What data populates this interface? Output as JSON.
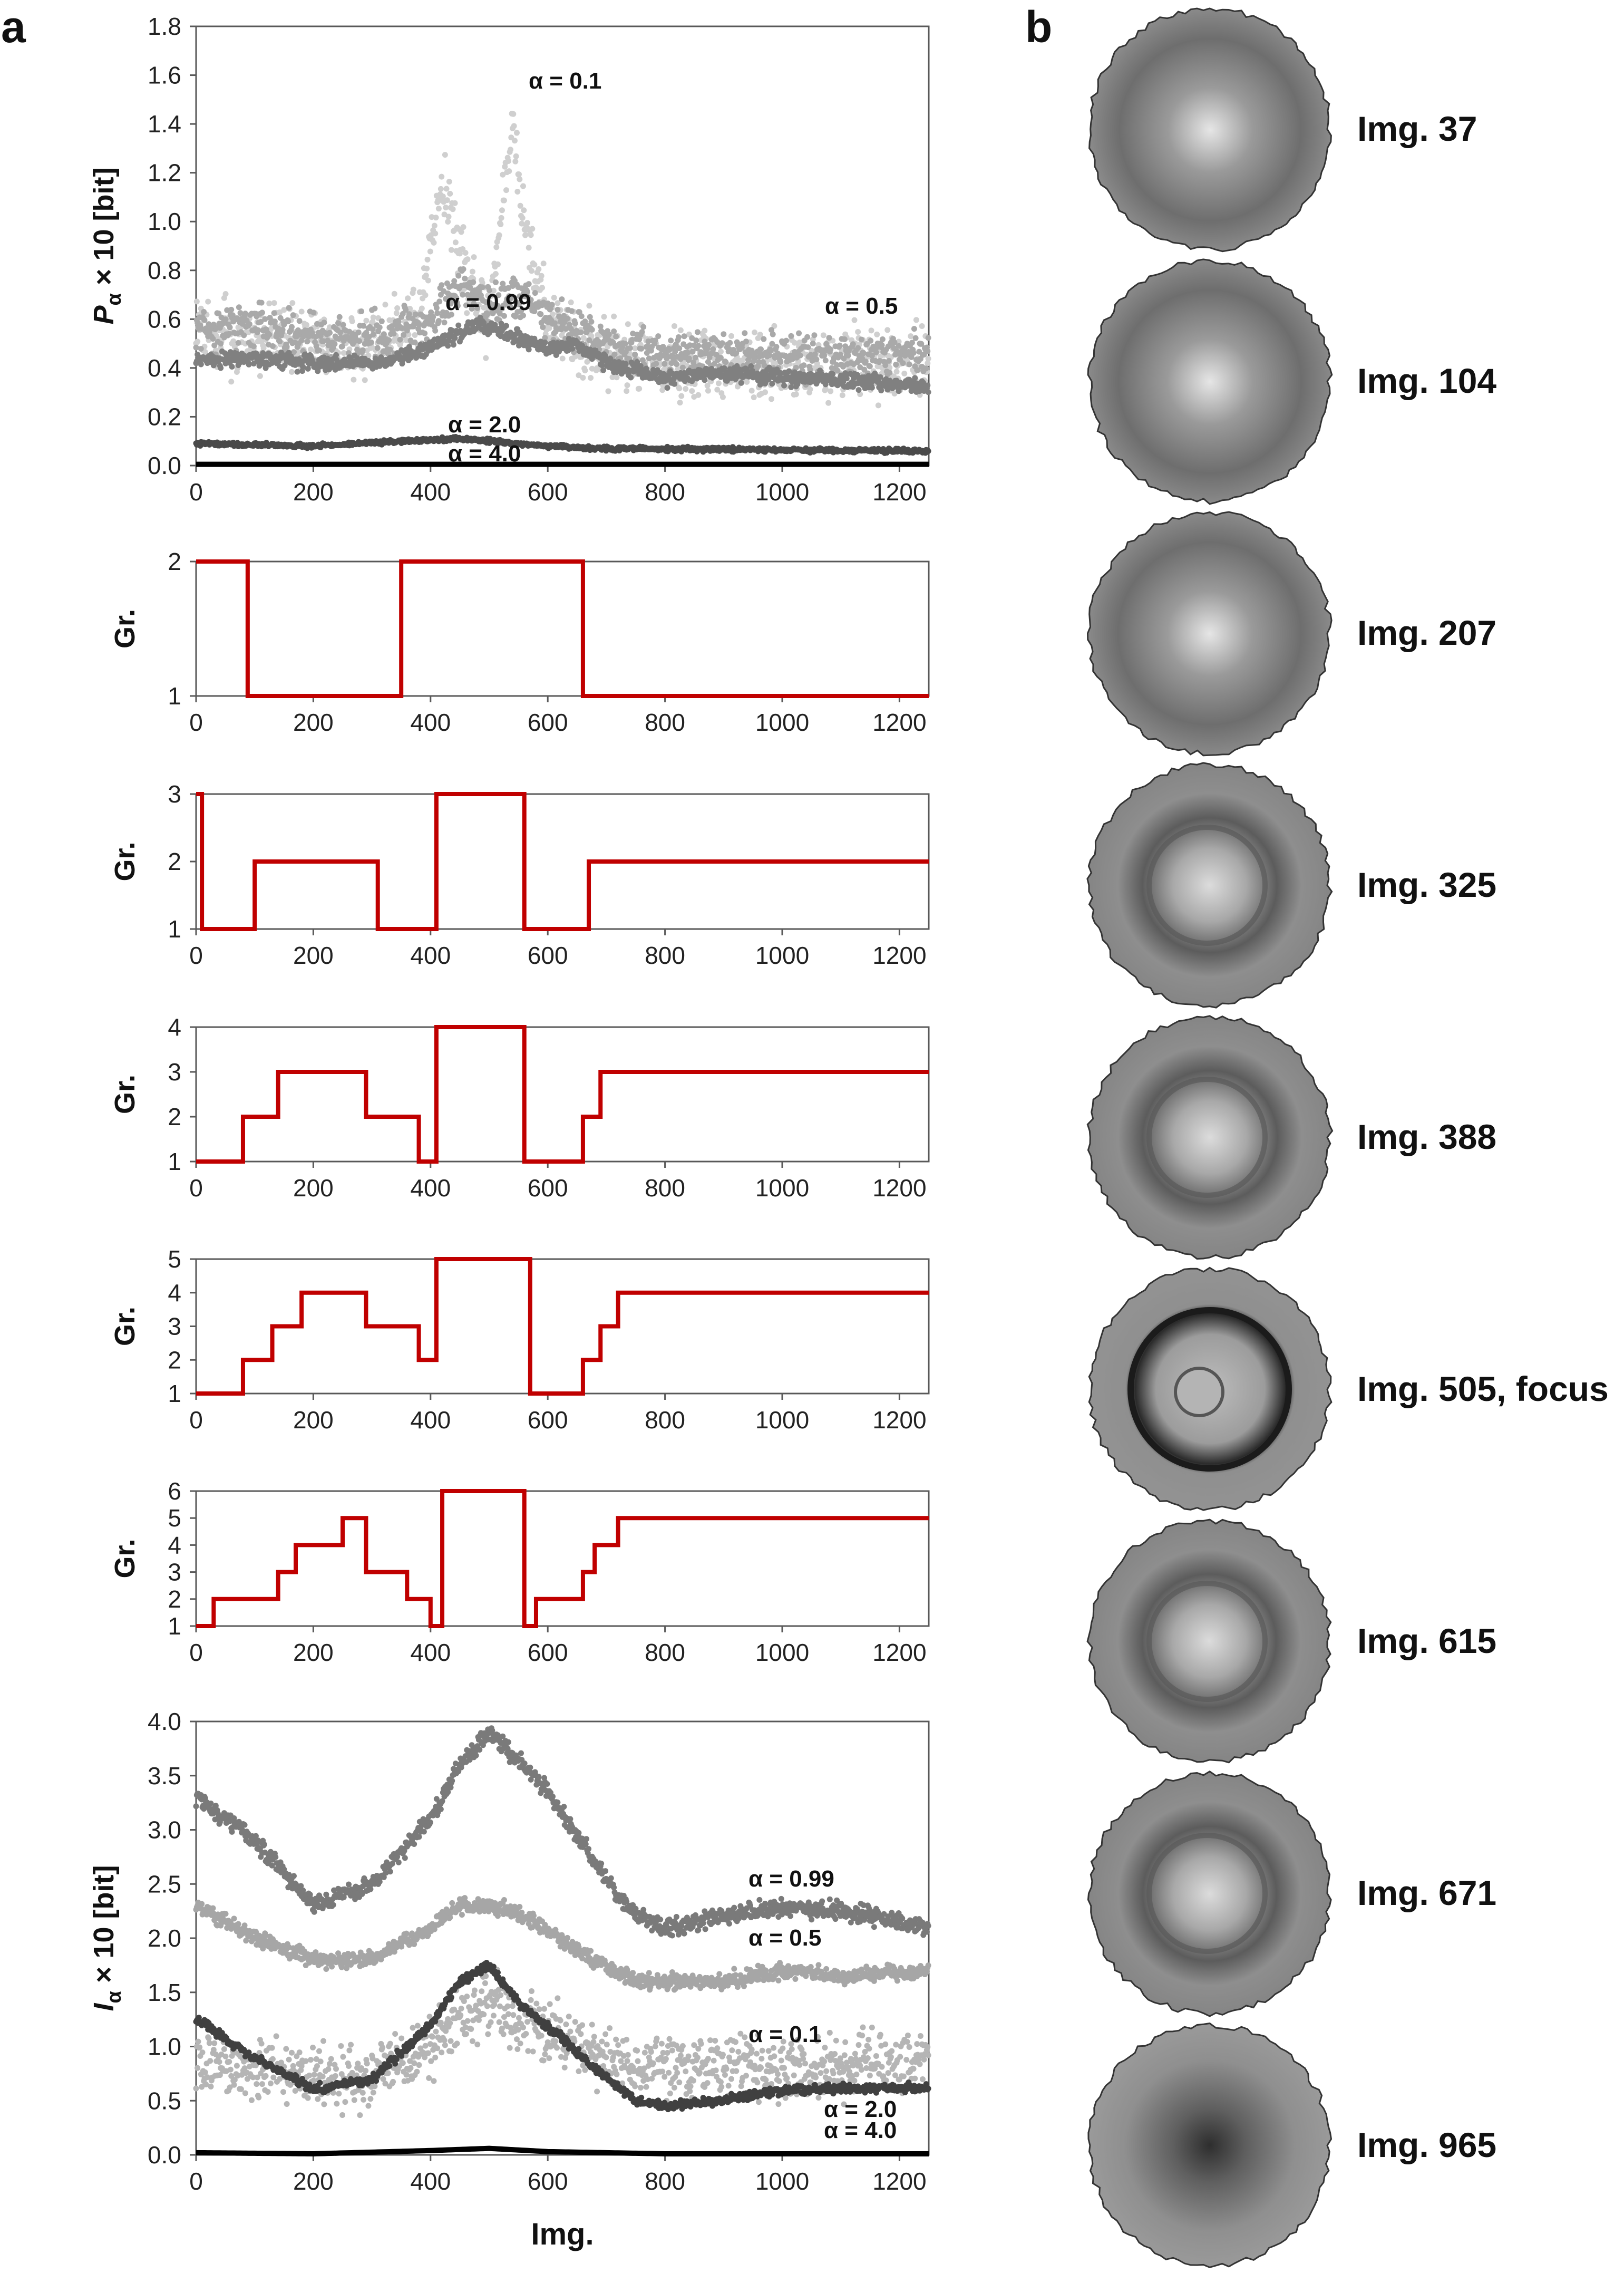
{
  "panels": {
    "a": "a",
    "b": "b"
  },
  "chart_data": [
    {
      "id": "p-alpha",
      "type": "scatter",
      "title": "",
      "xlabel": "",
      "ylabel": {
        "symbol": "P",
        "sub": "α",
        "rest": " × 10 [bit]"
      },
      "xlim": [
        0,
        1250
      ],
      "ylim": [
        0,
        1.8
      ],
      "xticks": [
        "0",
        "200",
        "400",
        "600",
        "800",
        "1000",
        "1200"
      ],
      "yticks": [
        "0.0",
        "0.2",
        "0.4",
        "0.6",
        "0.8",
        "1.0",
        "1.2",
        "1.4",
        "1.6",
        "1.8"
      ],
      "series": [
        {
          "name": "α = 0.1",
          "color": "#cfcfcf",
          "x": [
            0,
            100,
            200,
            300,
            380,
            420,
            460,
            500,
            540,
            560,
            600,
            650,
            700,
            800,
            900,
            1000,
            1100,
            1250
          ],
          "y": [
            0.55,
            0.52,
            0.5,
            0.5,
            0.6,
            1.2,
            0.8,
            0.6,
            1.4,
            1.0,
            0.6,
            0.5,
            0.45,
            0.4,
            0.42,
            0.4,
            0.42,
            0.4
          ]
        },
        {
          "name": "α = 0.5",
          "color": "#a9a9a9",
          "x": [
            0,
            100,
            200,
            300,
            400,
            450,
            500,
            550,
            600,
            650,
            700,
            800,
            900,
            1000,
            1100,
            1250
          ],
          "y": [
            0.56,
            0.58,
            0.52,
            0.52,
            0.6,
            0.75,
            0.65,
            0.7,
            0.6,
            0.55,
            0.5,
            0.46,
            0.45,
            0.44,
            0.45,
            0.45
          ]
        },
        {
          "name": "α = 0.99",
          "color": "#808080",
          "x": [
            0,
            100,
            200,
            300,
            400,
            480,
            550,
            600,
            650,
            700,
            800,
            900,
            1000,
            1100,
            1250
          ],
          "y": [
            0.43,
            0.44,
            0.42,
            0.42,
            0.48,
            0.58,
            0.52,
            0.48,
            0.5,
            0.42,
            0.36,
            0.38,
            0.36,
            0.35,
            0.32
          ]
        },
        {
          "name": "α = 2.0",
          "color": "#4a4a4a",
          "x": [
            0,
            200,
            350,
            450,
            500,
            600,
            700,
            1250
          ],
          "y": [
            0.09,
            0.08,
            0.1,
            0.11,
            0.1,
            0.08,
            0.07,
            0.06
          ]
        },
        {
          "name": "α = 4.0",
          "color": "#000000",
          "x": [
            0,
            1250
          ],
          "y": [
            0.005,
            0.005
          ]
        }
      ],
      "annotations": [
        "α = 0.1",
        "α = 0.99",
        "α = 0.5",
        "α = 2.0",
        "α = 4.0"
      ]
    },
    {
      "id": "groups-2",
      "type": "line",
      "ylabel": "Gr.",
      "xlim": [
        0,
        1250
      ],
      "ylim": [
        1,
        2
      ],
      "xticks": [
        "0",
        "200",
        "400",
        "600",
        "800",
        "1000",
        "1200"
      ],
      "yticks": [
        "1",
        "2"
      ],
      "series": [
        {
          "name": "groups",
          "color": "#c00000",
          "x": [
            0,
            88,
            350,
            365,
            660,
            1250
          ],
          "y": [
            2,
            1,
            2,
            2,
            1,
            1
          ]
        }
      ]
    },
    {
      "id": "groups-3",
      "type": "line",
      "ylabel": "Gr.",
      "xlim": [
        0,
        1250
      ],
      "ylim": [
        1,
        3
      ],
      "xticks": [
        "0",
        "200",
        "400",
        "600",
        "800",
        "1000",
        "1200"
      ],
      "yticks": [
        "1",
        "2",
        "3"
      ],
      "series": [
        {
          "name": "groups",
          "color": "#c00000",
          "x": [
            0,
            10,
            30,
            100,
            120,
            310,
            350,
            410,
            560,
            580,
            670,
            1250
          ],
          "y": [
            3,
            1,
            1,
            2,
            2,
            1,
            1,
            3,
            1,
            1,
            2,
            2
          ]
        }
      ]
    },
    {
      "id": "groups-4",
      "type": "line",
      "ylabel": "Gr.",
      "xlim": [
        0,
        1250
      ],
      "ylim": [
        1,
        4
      ],
      "xticks": [
        "0",
        "200",
        "400",
        "600",
        "800",
        "1000",
        "1200"
      ],
      "yticks": [
        "1",
        "2",
        "3",
        "4"
      ],
      "series": [
        {
          "name": "groups",
          "color": "#c00000",
          "x": [
            0,
            80,
            140,
            290,
            380,
            410,
            560,
            580,
            660,
            690,
            1250
          ],
          "y": [
            1,
            2,
            3,
            2,
            1,
            4,
            1,
            1,
            2,
            3,
            3
          ]
        }
      ]
    },
    {
      "id": "groups-5",
      "type": "line",
      "ylabel": "Gr.",
      "xlim": [
        0,
        1250
      ],
      "ylim": [
        1,
        5
      ],
      "xticks": [
        "0",
        "200",
        "400",
        "600",
        "800",
        "1000",
        "1200"
      ],
      "yticks": [
        "1",
        "2",
        "3",
        "4",
        "5"
      ],
      "series": [
        {
          "name": "groups",
          "color": "#c00000",
          "x": [
            0,
            80,
            130,
            180,
            290,
            380,
            410,
            570,
            580,
            660,
            690,
            720,
            1250
          ],
          "y": [
            1,
            2,
            3,
            4,
            3,
            2,
            5,
            1,
            1,
            2,
            3,
            4,
            4
          ]
        }
      ]
    },
    {
      "id": "groups-6",
      "type": "line",
      "ylabel": "Gr.",
      "xlim": [
        0,
        1250
      ],
      "ylim": [
        1,
        6
      ],
      "xticks": [
        "0",
        "200",
        "400",
        "600",
        "800",
        "1000",
        "1200"
      ],
      "yticks": [
        "1",
        "2",
        "3",
        "4",
        "5",
        "6"
      ],
      "series": [
        {
          "name": "groups",
          "color": "#c00000",
          "x": [
            0,
            30,
            70,
            140,
            170,
            250,
            290,
            360,
            400,
            420,
            560,
            580,
            660,
            680,
            700,
            720,
            1250
          ],
          "y": [
            1,
            2,
            2,
            3,
            4,
            5,
            3,
            2,
            1,
            6,
            1,
            2,
            3,
            4,
            4,
            5,
            5
          ]
        }
      ]
    },
    {
      "id": "i-alpha",
      "type": "scatter",
      "xlabel": "Img.",
      "ylabel": {
        "symbol": "I",
        "sub": "α",
        "rest": " × 10 [bit]"
      },
      "xlim": [
        0,
        1250
      ],
      "ylim": [
        0,
        4.0
      ],
      "xticks": [
        "0",
        "200",
        "400",
        "600",
        "800",
        "1000",
        "1200"
      ],
      "yticks": [
        "0.0",
        "0.5",
        "1.0",
        "1.5",
        "2.0",
        "2.5",
        "3.0",
        "3.5",
        "4.0"
      ],
      "series": [
        {
          "name": "α = 0.99",
          "color": "#7a7a7a",
          "x": [
            0,
            100,
            200,
            300,
            400,
            450,
            500,
            560,
            620,
            680,
            750,
            800,
            900,
            1000,
            1100,
            1250
          ],
          "y": [
            3.3,
            2.9,
            2.3,
            2.5,
            3.1,
            3.6,
            3.9,
            3.6,
            3.2,
            2.7,
            2.2,
            2.1,
            2.2,
            2.3,
            2.25,
            2.1
          ]
        },
        {
          "name": "α = 0.5",
          "color": "#a6a6a6",
          "x": [
            0,
            100,
            200,
            300,
            400,
            450,
            500,
            560,
            620,
            680,
            750,
            800,
            900,
            1000,
            1100,
            1250
          ],
          "y": [
            2.3,
            2.0,
            1.8,
            1.8,
            2.1,
            2.3,
            2.3,
            2.2,
            2.0,
            1.8,
            1.6,
            1.6,
            1.6,
            1.7,
            1.65,
            1.7
          ]
        },
        {
          "name": "α = 0.1",
          "color": "#b5b5b5",
          "x": [
            0,
            100,
            200,
            300,
            400,
            450,
            500,
            560,
            620,
            680,
            750,
            800,
            900,
            1000,
            1100,
            1250
          ],
          "y": [
            0.9,
            0.8,
            0.7,
            0.7,
            1.0,
            1.3,
            1.4,
            1.2,
            1.1,
            0.9,
            0.8,
            0.8,
            0.85,
            0.8,
            0.85,
            0.85
          ]
        },
        {
          "name": "α = 2.0",
          "color": "#404040",
          "x": [
            0,
            100,
            200,
            300,
            400,
            450,
            500,
            560,
            620,
            680,
            750,
            800,
            900,
            1000,
            1100,
            1250
          ],
          "y": [
            1.25,
            0.9,
            0.6,
            0.7,
            1.2,
            1.6,
            1.75,
            1.35,
            1.1,
            0.8,
            0.5,
            0.45,
            0.5,
            0.6,
            0.62,
            0.62
          ]
        },
        {
          "name": "α = 4.0",
          "color": "#000000",
          "x": [
            0,
            200,
            400,
            500,
            600,
            800,
            1250
          ],
          "y": [
            0.02,
            0.01,
            0.04,
            0.06,
            0.03,
            0.01,
            0.01
          ]
        }
      ],
      "annotations": [
        "α = 0.99",
        "α = 0.5",
        "α = 0.1",
        "α = 2.0",
        "α = 4.0"
      ]
    }
  ],
  "images": [
    {
      "label": "Img. 37",
      "icon": "cell-blurry-icon"
    },
    {
      "label": "Img. 104",
      "icon": "cell-blurry-icon"
    },
    {
      "label": "Img. 207",
      "icon": "cell-blurry-icon"
    },
    {
      "label": "Img. 325",
      "icon": "cell-icon"
    },
    {
      "label": "Img. 388",
      "icon": "cell-icon"
    },
    {
      "label": "Img. 505, focus",
      "icon": "cell-focused-icon"
    },
    {
      "label": "Img. 615",
      "icon": "cell-icon"
    },
    {
      "label": "Img. 671",
      "icon": "cell-icon"
    },
    {
      "label": "Img. 965",
      "icon": "cell-dark-icon"
    }
  ]
}
